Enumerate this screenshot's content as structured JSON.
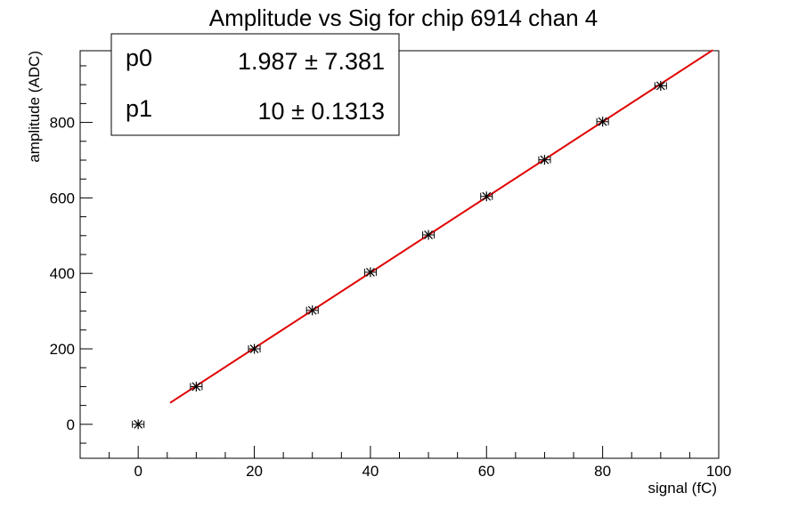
{
  "chart_data": {
    "type": "scatter",
    "title": "Amplitude vs Sig for chip 6914 chan 4",
    "xlabel": "signal (fC)",
    "ylabel": "amplitude (ADC)",
    "xlim": [
      -10,
      100
    ],
    "ylim": [
      -90,
      990
    ],
    "x_ticks": [
      0,
      20,
      40,
      60,
      80,
      100
    ],
    "y_ticks": [
      0,
      200,
      400,
      600,
      800
    ],
    "x": [
      0,
      10,
      20,
      30,
      40,
      50,
      60,
      70,
      80,
      90
    ],
    "y": [
      0,
      100,
      200,
      302,
      403,
      502,
      604,
      701,
      802,
      897
    ],
    "x_err": [
      1,
      1,
      1,
      1,
      1,
      1,
      1,
      1,
      1,
      1
    ],
    "marker_color": "#000000",
    "fit": {
      "function": "p0 + p1*x",
      "x_range": [
        5.5,
        99
      ],
      "color": "#e00000",
      "params": [
        {
          "name": "p0",
          "value": 1.987,
          "value_text": "1.987",
          "pm": "±",
          "error_text": "7.381"
        },
        {
          "name": "p1",
          "value": 10,
          "value_text": "10",
          "pm": "±",
          "error_text": "0.1313"
        }
      ]
    },
    "legend_position": "top-left",
    "grid": false
  }
}
